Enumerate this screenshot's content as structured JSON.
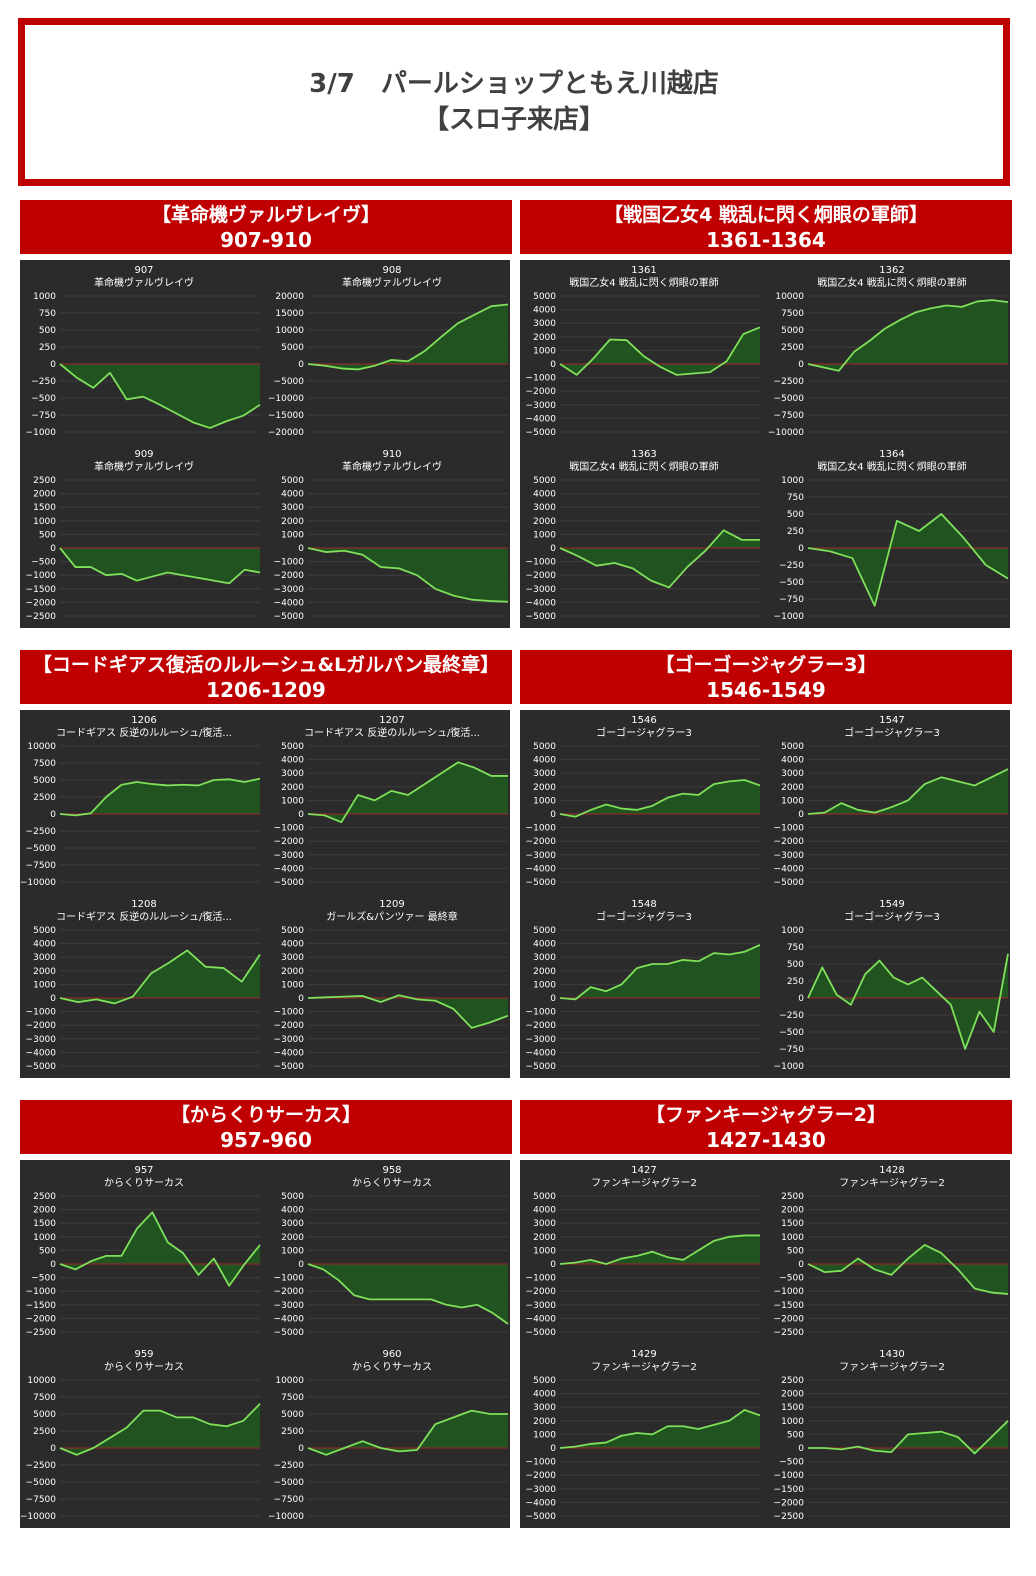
{
  "page": {
    "title_line1": "3/7　パールショップともえ川越店",
    "title_line2": "【スロ子来店】"
  },
  "sections": [
    {
      "title": "【革命機ヴァルヴレイヴ】",
      "range": "907-910"
    },
    {
      "title": "【戦国乙女4 戦乱に閃く炯眼の軍師】",
      "range": "1361-1364"
    },
    {
      "title": "【コードギアス復活のルルーシュ&Lガルパン最終章】",
      "range": "1206-1209"
    },
    {
      "title": "【ゴーゴージャグラー3】",
      "range": "1546-1549"
    },
    {
      "title": "【からくりサーカス】",
      "range": "957-960"
    },
    {
      "title": "【ファンキージャグラー2】",
      "range": "1427-1430"
    }
  ],
  "colors": {
    "accent_red": "#c00000",
    "panel_bg": "#2b2b2b",
    "line": "#7fe05a",
    "fill": "#1f5a1f",
    "zero_line": "#8a2a2a",
    "text": "#ffffff"
  },
  "chart_data": [
    {
      "type": "area",
      "section": 0,
      "number": "907",
      "name": "革命機ヴァルヴレイヴ",
      "yticks": [
        1000,
        750,
        500,
        250,
        0,
        -250,
        -500,
        -750,
        -1000
      ],
      "ylim": [
        -1000,
        1000
      ],
      "values": [
        0,
        -200,
        -350,
        -130,
        -520,
        -480,
        -600,
        -730,
        -860,
        -940,
        -840,
        -760,
        -600
      ]
    },
    {
      "type": "area",
      "section": 0,
      "number": "908",
      "name": "革命機ヴァルヴレイヴ",
      "yticks": [
        20000,
        15000,
        10000,
        5000,
        0,
        -5000,
        -10000,
        -15000,
        -20000
      ],
      "ylim": [
        -20000,
        20000
      ],
      "values": [
        0,
        -500,
        -1300,
        -1600,
        -500,
        1200,
        800,
        3800,
        8000,
        12000,
        14500,
        17000,
        17500
      ]
    },
    {
      "type": "area",
      "section": 0,
      "number": "909",
      "name": "革命機ヴァルヴレイヴ",
      "yticks": [
        2500,
        2000,
        1500,
        1000,
        500,
        0,
        -500,
        -1000,
        -1500,
        -2000,
        -2500
      ],
      "ylim": [
        -2500,
        2500
      ],
      "values": [
        0,
        -700,
        -700,
        -1000,
        -950,
        -1200,
        -1050,
        -900,
        -1000,
        -1100,
        -1200,
        -1300,
        -800,
        -900
      ]
    },
    {
      "type": "area",
      "section": 0,
      "number": "910",
      "name": "革命機ヴァルヴレイヴ",
      "yticks": [
        5000,
        4000,
        3000,
        2000,
        1000,
        0,
        -1000,
        -2000,
        -3000,
        -4000,
        -5000
      ],
      "ylim": [
        -5000,
        5000
      ],
      "values": [
        0,
        -300,
        -200,
        -500,
        -1400,
        -1500,
        -2000,
        -3000,
        -3500,
        -3800,
        -3900,
        -3950
      ]
    },
    {
      "type": "area",
      "section": 1,
      "number": "1361",
      "name": "戦国乙女4 戦乱に閃く炯眼の軍師",
      "yticks": [
        5000,
        4000,
        3000,
        2000,
        1000,
        0,
        -1000,
        -2000,
        -3000,
        -4000,
        -5000
      ],
      "ylim": [
        -5000,
        5000
      ],
      "values": [
        0,
        -800,
        400,
        1800,
        1750,
        600,
        -200,
        -800,
        -700,
        -600,
        200,
        2200,
        2700
      ]
    },
    {
      "type": "area",
      "section": 1,
      "number": "1362",
      "name": "戦国乙女4 戦乱に閃く炯眼の軍師",
      "yticks": [
        10000,
        7500,
        5000,
        2500,
        0,
        -2500,
        -5000,
        -7500,
        -10000
      ],
      "ylim": [
        -10000,
        10000
      ],
      "values": [
        0,
        -500,
        -1000,
        1800,
        3400,
        5200,
        6500,
        7600,
        8200,
        8600,
        8400,
        9200,
        9400,
        9100
      ]
    },
    {
      "type": "area",
      "section": 1,
      "number": "1363",
      "name": "戦国乙女4 戦乱に閃く炯眼の軍師",
      "yticks": [
        5000,
        4000,
        3000,
        2000,
        1000,
        0,
        -1000,
        -2000,
        -3000,
        -4000,
        -5000
      ],
      "ylim": [
        -5000,
        5000
      ],
      "values": [
        0,
        -600,
        -1300,
        -1100,
        -1500,
        -2400,
        -2900,
        -1400,
        -200,
        1300,
        600,
        600
      ]
    },
    {
      "type": "area",
      "section": 1,
      "number": "1364",
      "name": "戦国乙女4 戦乱に閃く炯眼の軍師",
      "yticks": [
        1000,
        750,
        500,
        250,
        0,
        -250,
        -500,
        -750,
        -1000
      ],
      "ylim": [
        -1000,
        1000
      ],
      "values": [
        0,
        -50,
        -150,
        -850,
        400,
        250,
        500,
        150,
        -250,
        -450
      ]
    },
    {
      "type": "area",
      "section": 2,
      "number": "1206",
      "name": "コードギアス 反逆のルルーシュ/復活...",
      "yticks": [
        10000,
        7500,
        5000,
        2500,
        0,
        -2500,
        -5000,
        -7500,
        -10000
      ],
      "ylim": [
        -10000,
        10000
      ],
      "values": [
        0,
        -200,
        100,
        2500,
        4300,
        4700,
        4400,
        4200,
        4300,
        4200,
        5000,
        5100,
        4700,
        5200
      ]
    },
    {
      "type": "area",
      "section": 2,
      "number": "1207",
      "name": "コードギアス 反逆のルルーシュ/復活...",
      "yticks": [
        5000,
        4000,
        3000,
        2000,
        1000,
        0,
        -1000,
        -2000,
        -3000,
        -4000,
        -5000
      ],
      "ylim": [
        -5000,
        5000
      ],
      "values": [
        0,
        -100,
        -600,
        1400,
        1000,
        1700,
        1400,
        2200,
        3000,
        3800,
        3400,
        2800,
        2800
      ]
    },
    {
      "type": "area",
      "section": 2,
      "number": "1208",
      "name": "コードギアス 反逆のルルーシュ/復活...",
      "yticks": [
        5000,
        4000,
        3000,
        2000,
        1000,
        0,
        -1000,
        -2000,
        -3000,
        -4000,
        -5000
      ],
      "ylim": [
        -5000,
        5000
      ],
      "values": [
        0,
        -300,
        -100,
        -400,
        100,
        1800,
        2600,
        3500,
        2300,
        2200,
        1200,
        3200
      ]
    },
    {
      "type": "area",
      "section": 2,
      "number": "1209",
      "name": "ガールズ&パンツァー 最終章",
      "yticks": [
        5000,
        4000,
        3000,
        2000,
        1000,
        0,
        -1000,
        -2000,
        -3000,
        -4000,
        -5000
      ],
      "ylim": [
        -5000,
        5000
      ],
      "values": [
        0,
        50,
        100,
        150,
        -300,
        200,
        -100,
        -200,
        -800,
        -2200,
        -1800,
        -1300
      ]
    },
    {
      "type": "area",
      "section": 3,
      "number": "1546",
      "name": "ゴーゴージャグラー3",
      "yticks": [
        5000,
        4000,
        3000,
        2000,
        1000,
        0,
        -1000,
        -2000,
        -3000,
        -4000,
        -5000
      ],
      "ylim": [
        -5000,
        5000
      ],
      "values": [
        0,
        -200,
        300,
        700,
        400,
        300,
        600,
        1200,
        1500,
        1400,
        2200,
        2400,
        2500,
        2100
      ]
    },
    {
      "type": "area",
      "section": 3,
      "number": "1547",
      "name": "ゴーゴージャグラー3",
      "yticks": [
        5000,
        4000,
        3000,
        2000,
        1000,
        0,
        -1000,
        -2000,
        -3000,
        -4000,
        -5000
      ],
      "ylim": [
        -5000,
        5000
      ],
      "values": [
        0,
        100,
        800,
        300,
        100,
        500,
        1000,
        2200,
        2700,
        2400,
        2100,
        2700,
        3300
      ]
    },
    {
      "type": "area",
      "section": 3,
      "number": "1548",
      "name": "ゴーゴージャグラー3",
      "yticks": [
        5000,
        4000,
        3000,
        2000,
        1000,
        0,
        -1000,
        -2000,
        -3000,
        -4000,
        -5000
      ],
      "ylim": [
        -5000,
        5000
      ],
      "values": [
        0,
        -100,
        800,
        500,
        1000,
        2200,
        2500,
        2500,
        2800,
        2700,
        3300,
        3200,
        3400,
        3900
      ]
    },
    {
      "type": "area",
      "section": 3,
      "number": "1549",
      "name": "ゴーゴージャグラー3",
      "yticks": [
        1000,
        750,
        500,
        250,
        0,
        -250,
        -500,
        -750,
        -1000
      ],
      "ylim": [
        -1000,
        1000
      ],
      "values": [
        0,
        450,
        50,
        -100,
        350,
        550,
        300,
        200,
        300,
        100,
        -100,
        -750,
        -200,
        -500,
        650
      ]
    },
    {
      "type": "area",
      "section": 4,
      "number": "957",
      "name": "からくりサーカス",
      "yticks": [
        2500,
        2000,
        1500,
        1000,
        500,
        0,
        -500,
        -1000,
        -1500,
        -2000,
        -2500
      ],
      "ylim": [
        -2500,
        2500
      ],
      "values": [
        0,
        -200,
        100,
        300,
        300,
        1300,
        1900,
        800,
        400,
        -400,
        200,
        -800,
        0,
        700
      ]
    },
    {
      "type": "area",
      "section": 4,
      "number": "958",
      "name": "からくりサーカス",
      "yticks": [
        5000,
        4000,
        3000,
        2000,
        1000,
        0,
        -1000,
        -2000,
        -3000,
        -4000,
        -5000
      ],
      "ylim": [
        -5000,
        5000
      ],
      "values": [
        0,
        -400,
        -1200,
        -2300,
        -2600,
        -2600,
        -2600,
        -2600,
        -2600,
        -3000,
        -3200,
        -3000,
        -3600,
        -4400
      ]
    },
    {
      "type": "area",
      "section": 4,
      "number": "959",
      "name": "からくりサーカス",
      "yticks": [
        10000,
        7500,
        5000,
        2500,
        0,
        -2500,
        -5000,
        -7500,
        -10000
      ],
      "ylim": [
        -10000,
        10000
      ],
      "values": [
        0,
        -1000,
        0,
        1500,
        3000,
        5500,
        5500,
        4500,
        4500,
        3500,
        3200,
        4000,
        6500
      ]
    },
    {
      "type": "area",
      "section": 4,
      "number": "960",
      "name": "からくりサーカス",
      "yticks": [
        10000,
        7500,
        5000,
        2500,
        0,
        -2500,
        -5000,
        -7500,
        -10000
      ],
      "ylim": [
        -10000,
        10000
      ],
      "values": [
        0,
        -1000,
        0,
        1000,
        0,
        -500,
        -300,
        3500,
        4500,
        5500,
        5000,
        5000
      ]
    },
    {
      "type": "area",
      "section": 5,
      "number": "1427",
      "name": "ファンキージャグラー2",
      "yticks": [
        5000,
        4000,
        3000,
        2000,
        1000,
        0,
        -1000,
        -2000,
        -3000,
        -4000,
        -5000
      ],
      "ylim": [
        -5000,
        5000
      ],
      "values": [
        0,
        100,
        300,
        0,
        400,
        600,
        900,
        500,
        300,
        1000,
        1700,
        2000,
        2100,
        2100
      ]
    },
    {
      "type": "area",
      "section": 5,
      "number": "1428",
      "name": "ファンキージャグラー2",
      "yticks": [
        2500,
        2000,
        1500,
        1000,
        500,
        0,
        -500,
        -1000,
        -1500,
        -2000,
        -2500
      ],
      "ylim": [
        -2500,
        2500
      ],
      "values": [
        0,
        -300,
        -250,
        200,
        -200,
        -400,
        200,
        700,
        400,
        -200,
        -900,
        -1050,
        -1100
      ]
    },
    {
      "type": "area",
      "section": 5,
      "number": "1429",
      "name": "ファンキージャグラー2",
      "yticks": [
        5000,
        4000,
        3000,
        2000,
        1000,
        0,
        -1000,
        -2000,
        -3000,
        -4000,
        -5000
      ],
      "ylim": [
        -5000,
        5000
      ],
      "values": [
        0,
        100,
        300,
        400,
        900,
        1100,
        1000,
        1600,
        1600,
        1400,
        1700,
        2000,
        2800,
        2400
      ]
    },
    {
      "type": "area",
      "section": 5,
      "number": "1430",
      "name": "ファンキージャグラー2",
      "yticks": [
        2500,
        2000,
        1500,
        1000,
        500,
        0,
        -500,
        -1000,
        -1500,
        -2000,
        -2500
      ],
      "ylim": [
        -2500,
        2500
      ],
      "values": [
        0,
        0,
        -50,
        50,
        -100,
        -150,
        500,
        550,
        600,
        400,
        -200,
        400,
        1000
      ]
    }
  ]
}
